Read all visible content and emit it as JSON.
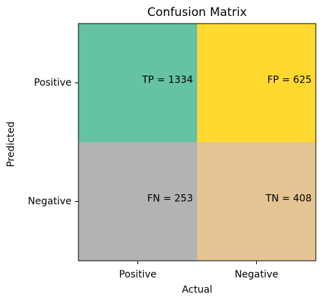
{
  "chart_data": {
    "type": "heatmap",
    "title": "Confusion Matrix",
    "x_label": "Actual",
    "y_label": "Predicted",
    "x_categories": [
      "Positive",
      "Negative"
    ],
    "y_categories": [
      "Positive",
      "Negative"
    ],
    "values": [
      [
        1334,
        625
      ],
      [
        253,
        408
      ]
    ],
    "value_labels": [
      [
        "TP = 1334",
        "FP = 625"
      ],
      [
        "FN = 253",
        "TN = 408"
      ]
    ],
    "colors": [
      [
        "#66c2a5",
        "#ffd92f"
      ],
      [
        "#b3b3b3",
        "#e5c494"
      ]
    ]
  }
}
